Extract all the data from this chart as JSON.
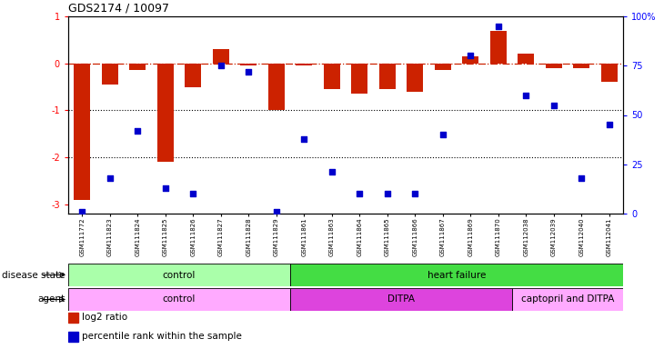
{
  "title": "GDS2174 / 10097",
  "samples": [
    "GSM111772",
    "GSM111823",
    "GSM111824",
    "GSM111825",
    "GSM111826",
    "GSM111827",
    "GSM111828",
    "GSM111829",
    "GSM111861",
    "GSM111863",
    "GSM111864",
    "GSM111865",
    "GSM111866",
    "GSM111867",
    "GSM111869",
    "GSM111870",
    "GSM112038",
    "GSM112039",
    "GSM112040",
    "GSM112041"
  ],
  "log2_ratio": [
    -2.9,
    -0.45,
    -0.15,
    -2.1,
    -0.5,
    0.3,
    -0.05,
    -1.0,
    -0.05,
    -0.55,
    -0.65,
    -0.55,
    -0.6,
    -0.15,
    0.15,
    0.7,
    0.2,
    -0.1,
    -0.1,
    -0.4
  ],
  "percentile": [
    1,
    18,
    42,
    13,
    10,
    75,
    72,
    1,
    38,
    21,
    10,
    10,
    10,
    40,
    80,
    95,
    60,
    55,
    18,
    45
  ],
  "bar_color": "#cc2200",
  "dot_color": "#0000cc",
  "ylim_left": [
    -3.2,
    1.0
  ],
  "ylim_right": [
    0,
    100
  ],
  "yticks_left": [
    1,
    0,
    -1,
    -2,
    -3
  ],
  "yticks_right": [
    100,
    75,
    50,
    25,
    0
  ],
  "dotted_lines": [
    -1,
    -2
  ],
  "disease_state_groups": [
    {
      "label": "control",
      "start": 0,
      "end": 8,
      "color": "#aaffaa"
    },
    {
      "label": "heart failure",
      "start": 8,
      "end": 20,
      "color": "#44dd44"
    }
  ],
  "agent_groups": [
    {
      "label": "control",
      "start": 0,
      "end": 8,
      "color": "#ffaaff"
    },
    {
      "label": "DITPA",
      "start": 8,
      "end": 16,
      "color": "#dd44dd"
    },
    {
      "label": "captopril and DITPA",
      "start": 16,
      "end": 20,
      "color": "#ffaaff"
    }
  ],
  "legend_items": [
    {
      "label": "log2 ratio",
      "color": "#cc2200"
    },
    {
      "label": "percentile rank within the sample",
      "color": "#0000cc"
    }
  ],
  "row_label_disease": "disease state",
  "row_label_agent": "agent"
}
